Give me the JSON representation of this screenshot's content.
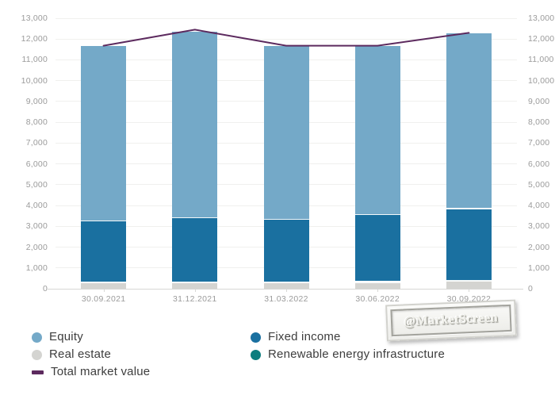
{
  "chart_data": {
    "type": "bar",
    "stacked": true,
    "title": "",
    "categories": [
      "30.09.2021",
      "31.12.2021",
      "31.03.2022",
      "30.06.2022",
      "30.09.2022"
    ],
    "series": [
      {
        "name": "Equity",
        "color": "#74a9c8",
        "values": [
          8360,
          8910,
          8300,
          8070,
          8410
        ]
      },
      {
        "name": "Fixed income",
        "color": "#1a70a0",
        "values": [
          2950,
          3090,
          3020,
          3230,
          3450
        ]
      },
      {
        "name": "Real estate",
        "color": "#d4d4d1",
        "values": [
          300,
          300,
          300,
          320,
          380
        ]
      },
      {
        "name": "Renewable energy infrastructure",
        "color": "#0d7d7e",
        "values": [
          40,
          40,
          40,
          40,
          40
        ]
      }
    ],
    "stack_order_bottom_to_top": [
      "Real estate",
      "Renewable energy infrastructure",
      "Fixed income",
      "Equity"
    ],
    "line_series": {
      "name": "Total market value",
      "color": "#5c2a5e",
      "values": [
        11680,
        12450,
        11680,
        11680,
        12300
      ]
    },
    "y_axis": {
      "min": 0,
      "max": 13000,
      "step": 1000,
      "tick_labels": [
        "0",
        "1,000",
        "2,000",
        "3,000",
        "4,000",
        "5,000",
        "6,000",
        "7,000",
        "8,000",
        "9,000",
        "10,000",
        "11,000",
        "12,000",
        "13,000"
      ],
      "sides": [
        "left",
        "right"
      ]
    },
    "grid": true,
    "legend_position": "bottom"
  },
  "legend": {
    "rows": [
      {
        "left": {
          "label": "Equity",
          "color": "#74a9c8",
          "marker": "circle"
        },
        "right": {
          "label": "Fixed income",
          "color": "#1a70a0",
          "marker": "circle"
        }
      },
      {
        "left": {
          "label": "Real estate",
          "color": "#d4d4d1",
          "marker": "circle"
        },
        "right": {
          "label": "Renewable energy infrastructure",
          "color": "#0d7d7e",
          "marker": "circle"
        }
      },
      {
        "left": {
          "label": "Total market value",
          "color": "#5c2a5e",
          "marker": "dash"
        }
      }
    ]
  },
  "watermark": {
    "text": "@MarketScreen"
  }
}
